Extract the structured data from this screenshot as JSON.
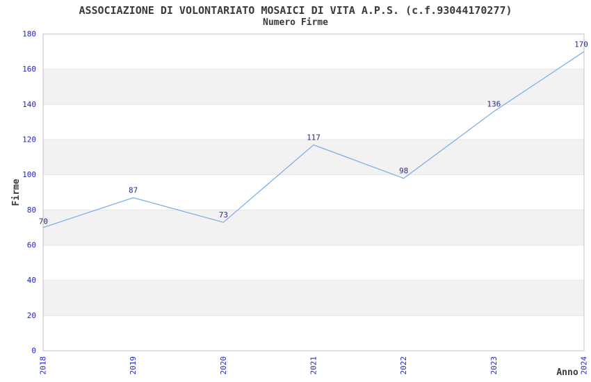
{
  "chart_data": {
    "type": "line",
    "title": "ASSOCIAZIONE DI VOLONTARIATO MOSAICI DI VITA A.P.S. (c.f.93044170277)",
    "subtitle": "Numero Firme",
    "xlabel": "Anno",
    "ylabel": "Firme",
    "categories": [
      "2018",
      "2019",
      "2020",
      "2021",
      "2022",
      "2023",
      "2024"
    ],
    "values": [
      70,
      87,
      73,
      117,
      98,
      136,
      170
    ],
    "ylim": [
      0,
      180
    ],
    "ytick_step": 20,
    "yticks": [
      0,
      20,
      40,
      60,
      80,
      100,
      120,
      140,
      160,
      180
    ],
    "data_labels": [
      "70",
      "87",
      "73",
      "117",
      "98",
      "136",
      "170"
    ],
    "legend": "none",
    "grid": "horizontal-bands",
    "x_tick_rotation_deg": 90,
    "colors": {
      "line": "#7FB0E4",
      "tick_label": "#2323CC",
      "data_label": "#2A2A7E",
      "band_gray": "#F2F2F2",
      "band_white": "#FFFFFF",
      "gridline": "#E4E4E4",
      "frame": "#C0C0C0",
      "title_text": "#3A3A3A"
    }
  }
}
